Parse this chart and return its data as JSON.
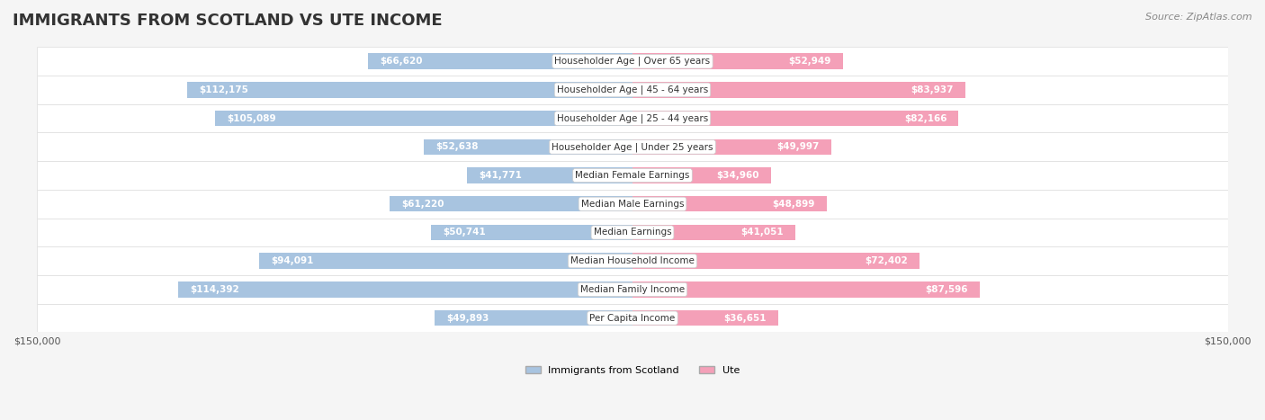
{
  "title": "IMMIGRANTS FROM SCOTLAND VS UTE INCOME",
  "source": "Source: ZipAtlas.com",
  "categories": [
    "Per Capita Income",
    "Median Family Income",
    "Median Household Income",
    "Median Earnings",
    "Median Male Earnings",
    "Median Female Earnings",
    "Householder Age | Under 25 years",
    "Householder Age | 25 - 44 years",
    "Householder Age | 45 - 64 years",
    "Householder Age | Over 65 years"
  ],
  "scotland_values": [
    49893,
    114392,
    94091,
    50741,
    61220,
    41771,
    52638,
    105089,
    112175,
    66620
  ],
  "ute_values": [
    36651,
    87596,
    72402,
    41051,
    48899,
    34960,
    49997,
    82166,
    83937,
    52949
  ],
  "scotland_labels": [
    "$49,893",
    "$114,392",
    "$94,091",
    "$50,741",
    "$61,220",
    "$41,771",
    "$52,638",
    "$105,089",
    "$112,175",
    "$66,620"
  ],
  "ute_labels": [
    "$36,651",
    "$87,596",
    "$72,402",
    "$41,051",
    "$48,899",
    "$34,960",
    "$49,997",
    "$82,166",
    "$83,937",
    "$52,949"
  ],
  "max_value": 150000,
  "scotland_color": "#a8c4e0",
  "scotland_color_dark": "#6699cc",
  "ute_color": "#f4a0b8",
  "ute_color_dark": "#e8608a",
  "background_color": "#f5f5f5",
  "row_background": "#ffffff",
  "label_bg": "#ffffff",
  "bar_height": 0.55,
  "legend_scotland": "Immigrants from Scotland",
  "legend_ute": "Ute"
}
